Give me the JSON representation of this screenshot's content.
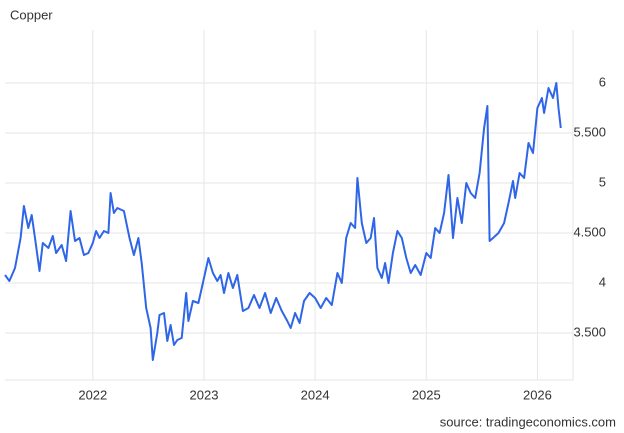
{
  "chart_data": {
    "type": "line",
    "title": "Copper",
    "source": "source: tradingeconomics.com",
    "x": [
      2021.21,
      2021.25,
      2021.3,
      2021.35,
      2021.38,
      2021.42,
      2021.45,
      2021.48,
      2021.52,
      2021.55,
      2021.6,
      2021.64,
      2021.67,
      2021.72,
      2021.76,
      2021.8,
      2021.84,
      2021.88,
      2021.92,
      2021.96,
      2022.0,
      2022.03,
      2022.06,
      2022.1,
      2022.14,
      2022.16,
      2022.19,
      2022.22,
      2022.28,
      2022.33,
      2022.37,
      2022.41,
      2022.44,
      2022.48,
      2022.52,
      2022.54,
      2022.58,
      2022.6,
      2022.64,
      2022.67,
      2022.7,
      2022.73,
      2022.76,
      2022.8,
      2022.84,
      2022.86,
      2022.9,
      2022.95,
      2023.0,
      2023.04,
      2023.08,
      2023.12,
      2023.15,
      2023.18,
      2023.22,
      2023.26,
      2023.3,
      2023.35,
      2023.4,
      2023.45,
      2023.5,
      2023.55,
      2023.6,
      2023.65,
      2023.7,
      2023.75,
      2023.78,
      2023.82,
      2023.86,
      2023.9,
      2023.95,
      2024.0,
      2024.05,
      2024.1,
      2024.15,
      2024.2,
      2024.24,
      2024.28,
      2024.32,
      2024.36,
      2024.38,
      2024.42,
      2024.46,
      2024.5,
      2024.53,
      2024.56,
      2024.6,
      2024.63,
      2024.66,
      2024.7,
      2024.74,
      2024.78,
      2024.82,
      2024.86,
      2024.9,
      2024.95,
      2025.0,
      2025.04,
      2025.08,
      2025.12,
      2025.16,
      2025.2,
      2025.24,
      2025.28,
      2025.32,
      2025.36,
      2025.4,
      2025.44,
      2025.48,
      2025.52,
      2025.55,
      2025.57,
      2025.6,
      2025.65,
      2025.7,
      2025.74,
      2025.78,
      2025.8,
      2025.84,
      2025.88,
      2025.92,
      2025.96,
      2026.0,
      2026.04,
      2026.06,
      2026.1,
      2026.14,
      2026.17,
      2026.19,
      2026.21
    ],
    "series": [
      {
        "name": "Copper",
        "color": "#2f66e8",
        "values": [
          4.08,
          4.02,
          4.15,
          4.45,
          4.77,
          4.55,
          4.68,
          4.45,
          4.12,
          4.4,
          4.35,
          4.47,
          4.3,
          4.38,
          4.22,
          4.72,
          4.42,
          4.45,
          4.28,
          4.3,
          4.4,
          4.52,
          4.45,
          4.52,
          4.5,
          4.9,
          4.7,
          4.75,
          4.72,
          4.45,
          4.28,
          4.45,
          4.2,
          3.75,
          3.55,
          3.23,
          3.5,
          3.68,
          3.7,
          3.42,
          3.58,
          3.38,
          3.43,
          3.45,
          3.9,
          3.62,
          3.82,
          3.8,
          4.05,
          4.25,
          4.1,
          4.02,
          4.08,
          3.9,
          4.1,
          3.95,
          4.08,
          3.72,
          3.75,
          3.88,
          3.75,
          3.9,
          3.7,
          3.85,
          3.72,
          3.62,
          3.55,
          3.7,
          3.6,
          3.82,
          3.9,
          3.85,
          3.75,
          3.85,
          3.78,
          4.1,
          4.0,
          4.45,
          4.6,
          4.55,
          5.05,
          4.6,
          4.4,
          4.45,
          4.65,
          4.15,
          4.05,
          4.2,
          4.0,
          4.3,
          4.52,
          4.45,
          4.25,
          4.1,
          4.18,
          4.08,
          4.3,
          4.25,
          4.55,
          4.5,
          4.7,
          5.08,
          4.45,
          4.85,
          4.6,
          5.0,
          4.9,
          4.85,
          5.1,
          5.55,
          5.77,
          4.42,
          4.45,
          4.5,
          4.6,
          4.8,
          5.02,
          4.85,
          5.1,
          5.05,
          5.4,
          5.3,
          5.75,
          5.85,
          5.7,
          5.95,
          5.85,
          6.0,
          5.75,
          5.55
        ]
      }
    ],
    "xlim": [
      2021.21,
      2026.32
    ],
    "xticks": [
      2022,
      2023,
      2024,
      2025,
      2026
    ],
    "ylim": [
      3.03,
      6.53
    ],
    "yticks": [
      {
        "value": 3.5,
        "label": "3.500"
      },
      4,
      {
        "value": 4.5,
        "label": "4.500"
      },
      5,
      {
        "value": 5.5,
        "label": "5.500"
      },
      6
    ],
    "grid": true
  }
}
